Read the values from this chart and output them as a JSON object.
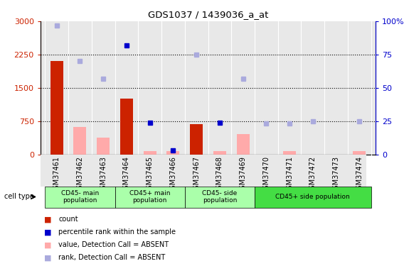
{
  "title": "GDS1037 / 1439036_a_at",
  "samples": [
    "GSM37461",
    "GSM37462",
    "GSM37463",
    "GSM37464",
    "GSM37465",
    "GSM37466",
    "GSM37467",
    "GSM37468",
    "GSM37469",
    "GSM37470",
    "GSM37471",
    "GSM37472",
    "GSM37473",
    "GSM37474"
  ],
  "count_present": [
    2100,
    null,
    null,
    1250,
    null,
    null,
    680,
    null,
    null,
    null,
    null,
    null,
    null,
    null
  ],
  "count_absent": [
    null,
    620,
    380,
    null,
    70,
    80,
    null,
    80,
    450,
    null,
    80,
    null,
    null,
    80
  ],
  "rank_present_vals": [
    null,
    null,
    null,
    82,
    24,
    3,
    null,
    24,
    null,
    null,
    null,
    null,
    null,
    null
  ],
  "rank_absent_vals": [
    97,
    70,
    57,
    null,
    null,
    null,
    75,
    null,
    57,
    23,
    23,
    25,
    null,
    25
  ],
  "groups": [
    {
      "label": "CD45- main\npopulation",
      "start": 0,
      "end": 3,
      "color": "#aaffaa"
    },
    {
      "label": "CD45+ main\npopulation",
      "start": 3,
      "end": 6,
      "color": "#aaffaa"
    },
    {
      "label": "CD45- side\npopulation",
      "start": 6,
      "end": 9,
      "color": "#aaffaa"
    },
    {
      "label": "CD45+ side population",
      "start": 9,
      "end": 14,
      "color": "#44dd44"
    }
  ],
  "ylim_left": [
    0,
    3000
  ],
  "ylim_right": [
    0,
    100
  ],
  "yticks_left": [
    0,
    750,
    1500,
    2250,
    3000
  ],
  "yticks_right": [
    0,
    25,
    50,
    75,
    100
  ],
  "ytick_labels_left": [
    "0",
    "750",
    "1500",
    "2250",
    "3000"
  ],
  "ytick_labels_right": [
    "0",
    "25",
    "50",
    "75",
    "100%"
  ],
  "color_count_present": "#cc2200",
  "color_count_absent": "#ffaaaa",
  "color_rank_present": "#0000cc",
  "color_rank_absent": "#aaaadd",
  "bar_width": 0.55,
  "plot_bg": "#e8e8e8",
  "cell_type_label": "cell type",
  "legend_items": [
    {
      "color": "#cc2200",
      "label": "count"
    },
    {
      "color": "#0000cc",
      "label": "percentile rank within the sample"
    },
    {
      "color": "#ffaaaa",
      "label": "value, Detection Call = ABSENT"
    },
    {
      "color": "#aaaadd",
      "label": "rank, Detection Call = ABSENT"
    }
  ]
}
